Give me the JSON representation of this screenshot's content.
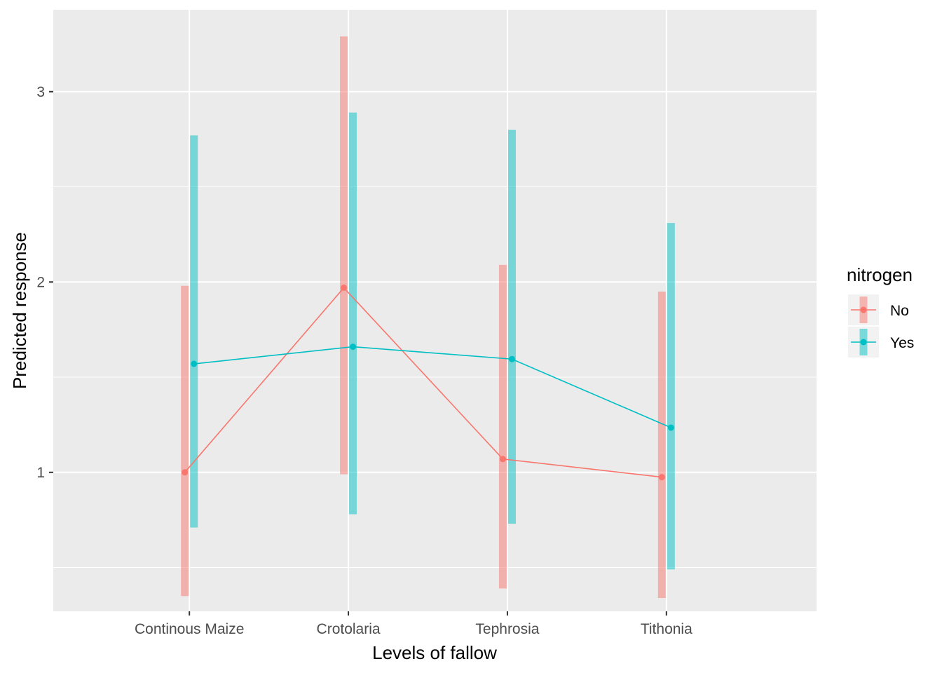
{
  "chart_data": {
    "type": "line",
    "xlabel": "Levels of fallow",
    "ylabel": "Predicted response",
    "categories": [
      "Continous Maize",
      "Crotolaria",
      "Tephrosia",
      "Tithonia"
    ],
    "ylim": [
      0.27,
      3.43
    ],
    "y_ticks": [
      1,
      2,
      3
    ],
    "y_tick_labels": [
      "1",
      "2",
      "3"
    ],
    "grid": true,
    "legend": {
      "title": "nitrogen",
      "position": "right"
    },
    "series": [
      {
        "name": "No",
        "color": "#F8766D",
        "values": [
          1.0,
          1.97,
          1.07,
          0.975
        ],
        "lower": [
          0.35,
          0.99,
          0.39,
          0.34
        ],
        "upper": [
          1.98,
          3.29,
          2.09,
          1.95
        ]
      },
      {
        "name": "Yes",
        "color": "#00BFC4",
        "values": [
          1.57,
          1.66,
          1.595,
          1.235
        ],
        "lower": [
          0.71,
          0.78,
          0.73,
          0.49
        ],
        "upper": [
          2.77,
          2.89,
          2.8,
          2.31
        ]
      }
    ]
  }
}
